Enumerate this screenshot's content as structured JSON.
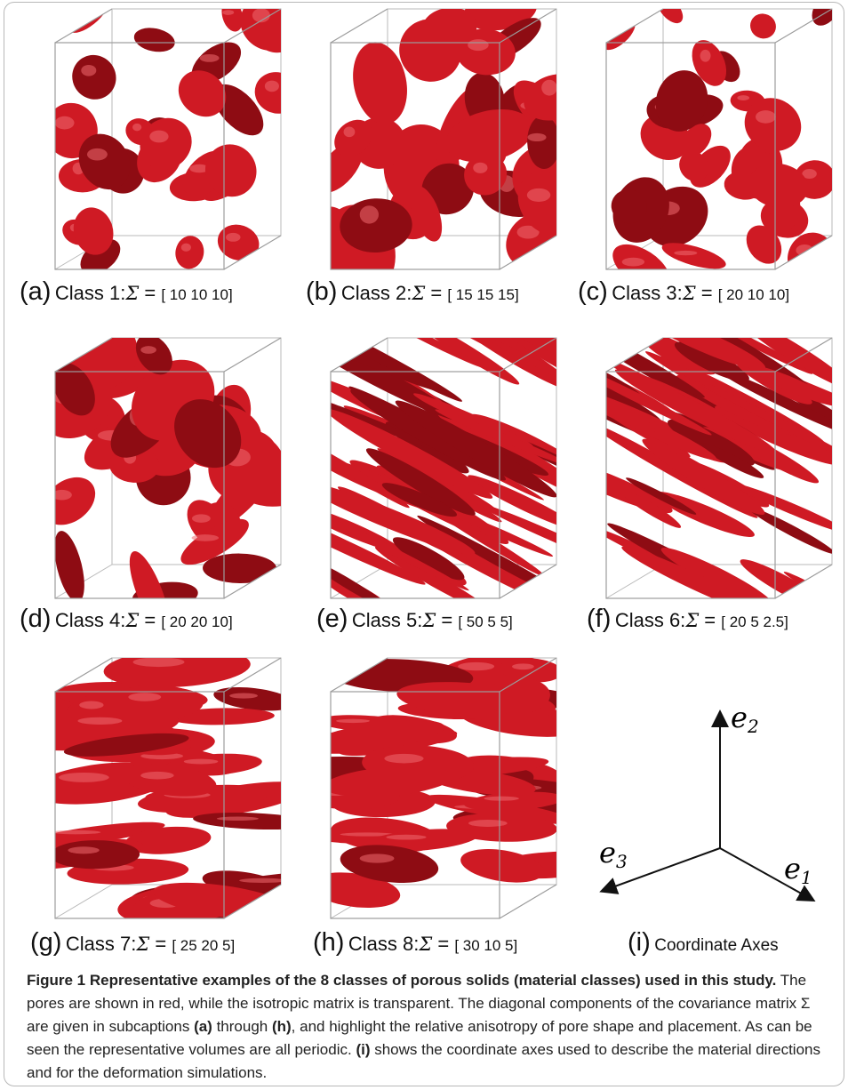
{
  "colors": {
    "pore": "#cf1a24",
    "pore_dark": "#8e0c13",
    "cube_line": "#9c9c9c",
    "frame": "#b8b8b8"
  },
  "panels": [
    {
      "letter": "(a)",
      "class_label": "Class 1:",
      "sigma": "Σ",
      "eq": " = ",
      "matrix": "[ 10 10 10]"
    },
    {
      "letter": "(b)",
      "class_label": "Class 2:",
      "sigma": "Σ",
      "eq": " = ",
      "matrix": "[ 15 15 15]"
    },
    {
      "letter": "(c)",
      "class_label": "Class 3:",
      "sigma": "Σ",
      "eq": " = ",
      "matrix": "[ 20 10 10]"
    },
    {
      "letter": "(d)",
      "class_label": "Class 4:",
      "sigma": "Σ",
      "eq": " = ",
      "matrix": "[ 20 20 10]"
    },
    {
      "letter": "(e)",
      "class_label": "Class 5:",
      "sigma": "Σ",
      "eq": " = ",
      "matrix": "[ 50 5 5]"
    },
    {
      "letter": "(f)",
      "class_label": "Class 6:",
      "sigma": "Σ",
      "eq": " = ",
      "matrix": "[ 20 5 2.5]"
    },
    {
      "letter": "(g)",
      "class_label": "Class 7:",
      "sigma": "Σ",
      "eq": " = ",
      "matrix": "[ 25 20 5]"
    },
    {
      "letter": "(h)",
      "class_label": "Class 8:",
      "sigma": "Σ",
      "eq": " = ",
      "matrix": "[ 30 10 5]"
    }
  ],
  "axes_panel": {
    "letter": "(i)",
    "label": "Coordinate Axes",
    "e1": "e",
    "e1_sub": "1",
    "e2": "e",
    "e2_sub": "2",
    "e3": "e",
    "e3_sub": "3"
  },
  "caption": {
    "title": "Figure 1 Representative examples of the 8 classes of porous solids (material classes) used in this study.",
    "t1": " The pores are shown in red, while the isotropic matrix is transparent. The diagonal components of the covariance matrix Σ are given in subcaptions ",
    "a": "(a)",
    "t2": " through ",
    "h": "(h)",
    "t3": ", and highlight the relative anisotropy of pore shape and placement. As can be seen the representative volumes are all periodic. ",
    "i": "(i)",
    "t4": " shows the coordinate axes used to describe the material directions and for the deformation simulations."
  }
}
